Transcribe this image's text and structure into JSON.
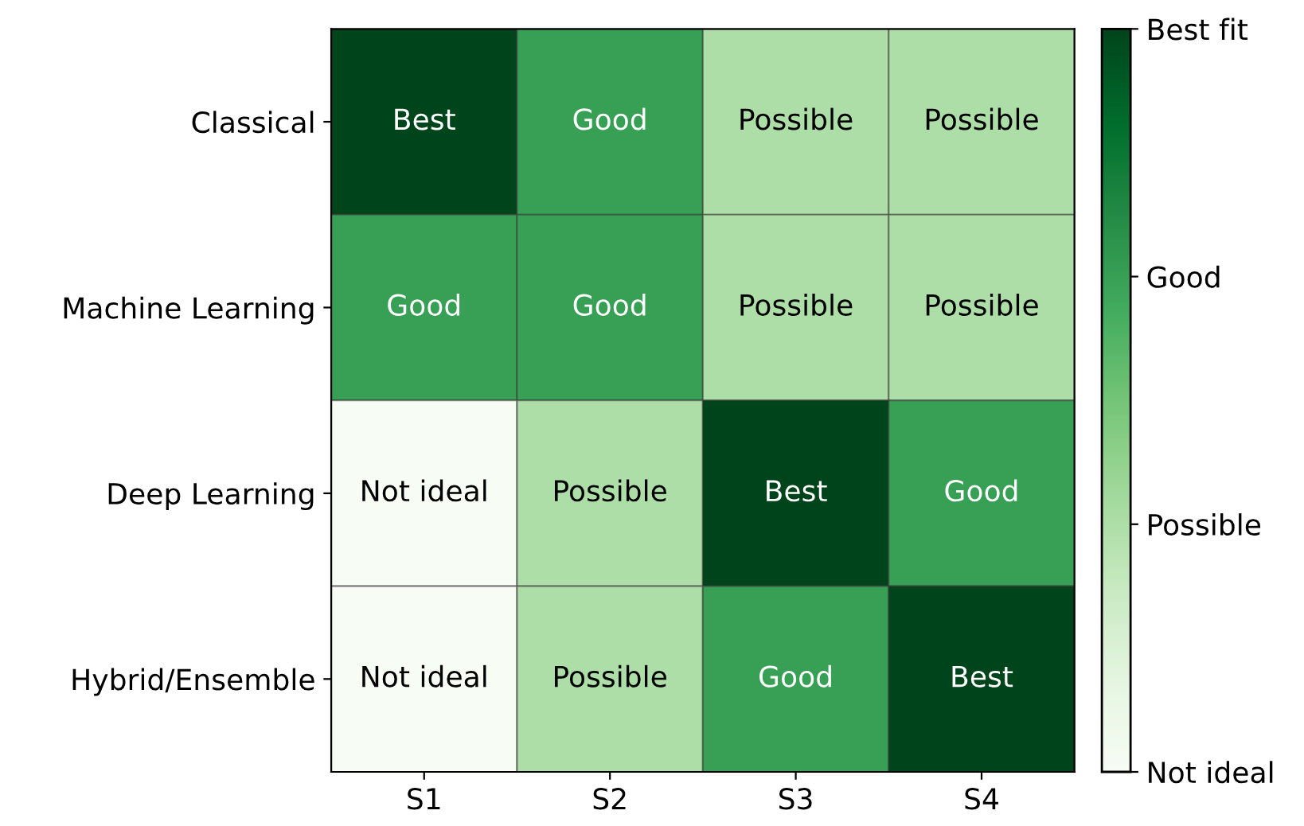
{
  "chart_data": {
    "type": "heatmap",
    "categories": [
      "S1",
      "S2",
      "S3",
      "S4"
    ],
    "y_categories": [
      "Classical",
      "Machine Learning",
      "Deep Learning",
      "Hybrid/Ensemble"
    ],
    "cells": [
      [
        3,
        2,
        1,
        1
      ],
      [
        2,
        2,
        1,
        1
      ],
      [
        0,
        1,
        3,
        2
      ],
      [
        0,
        1,
        2,
        3
      ]
    ],
    "cell_labels": [
      [
        "Best",
        "Good",
        "Possible",
        "Possible"
      ],
      [
        "Good",
        "Good",
        "Possible",
        "Possible"
      ],
      [
        "Not ideal",
        "Possible",
        "Best",
        "Good"
      ],
      [
        "Not ideal",
        "Possible",
        "Good",
        "Best"
      ]
    ],
    "clim": [
      0,
      3
    ],
    "cticks": [
      {
        "value": 0,
        "label": "Not ideal"
      },
      {
        "value": 1,
        "label": "Possible"
      },
      {
        "value": 2,
        "label": "Good"
      },
      {
        "value": 3,
        "label": "Best fit"
      }
    ]
  }
}
